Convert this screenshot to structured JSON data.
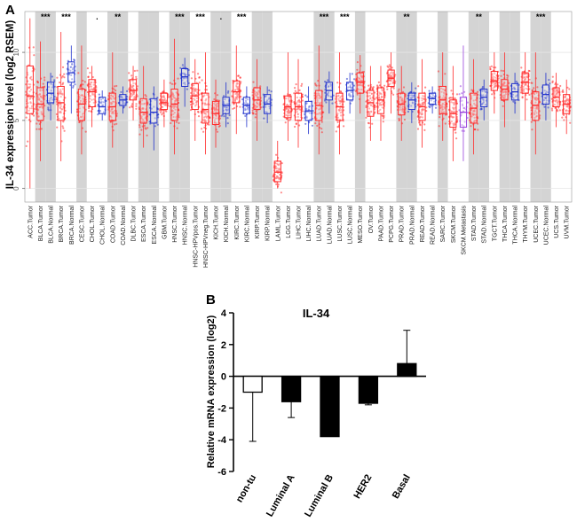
{
  "panel_a_label": "A",
  "panel_b_label": "B",
  "colors": {
    "tumor": "#ff2a2a",
    "normal": "#2233cc",
    "metastasis": "#9944dd",
    "shade": "#d4d4d4",
    "bar_black": "#000000",
    "bar_white": "#ffffff"
  },
  "chart_data": [
    {
      "type": "box",
      "title": "",
      "ylabel": "IL-34 expression level (log2 RSEM)",
      "xlabel": "",
      "ylim": [
        -1,
        13
      ],
      "yticks": [
        0,
        5,
        10
      ],
      "categories": [
        {
          "label": "ACC.Tumor",
          "group": "tumor",
          "shade": false,
          "q1": 5.5,
          "median": 6.8,
          "q3": 9.0,
          "lo": 0.0,
          "hi": 12.5,
          "sig": ""
        },
        {
          "label": "BLCA.Tumor",
          "group": "tumor",
          "shade": true,
          "q1": 5.0,
          "median": 6.2,
          "q3": 7.4,
          "lo": 2.0,
          "hi": 10.8,
          "sig": "***"
        },
        {
          "label": "BLCA.Normal",
          "group": "normal",
          "shade": true,
          "q1": 6.3,
          "median": 7.0,
          "q3": 7.8,
          "lo": 5.0,
          "hi": 8.5,
          "sig": ""
        },
        {
          "label": "BRCA.Tumor",
          "group": "tumor",
          "shade": false,
          "q1": 5.0,
          "median": 6.3,
          "q3": 7.5,
          "lo": 2.0,
          "hi": 11.5,
          "sig": "***"
        },
        {
          "label": "BRCA.Normal",
          "group": "normal",
          "shade": false,
          "q1": 7.8,
          "median": 8.5,
          "q3": 9.3,
          "lo": 5.5,
          "hi": 10.5,
          "sig": ""
        },
        {
          "label": "CESC.Tumor",
          "group": "tumor",
          "shade": true,
          "q1": 5.0,
          "median": 6.2,
          "q3": 7.3,
          "lo": 2.5,
          "hi": 10.5,
          "sig": ""
        },
        {
          "label": "CHOL.Tumor",
          "group": "tumor",
          "shade": false,
          "q1": 6.0,
          "median": 7.1,
          "q3": 8.0,
          "lo": 4.5,
          "hi": 9.0,
          "sig": "."
        },
        {
          "label": "CHOL.Normal",
          "group": "normal",
          "shade": false,
          "q1": 5.5,
          "median": 6.0,
          "q3": 6.7,
          "lo": 5.0,
          "hi": 7.2,
          "sig": ""
        },
        {
          "label": "COAD.Tumor",
          "group": "tumor",
          "shade": true,
          "q1": 5.0,
          "median": 6.0,
          "q3": 7.0,
          "lo": 3.0,
          "hi": 10.0,
          "sig": "**"
        },
        {
          "label": "COAD.Normal",
          "group": "normal",
          "shade": true,
          "q1": 6.1,
          "median": 6.5,
          "q3": 6.9,
          "lo": 5.5,
          "hi": 7.5,
          "sig": ""
        },
        {
          "label": "DLBC.Tumor",
          "group": "tumor",
          "shade": false,
          "q1": 6.5,
          "median": 7.2,
          "q3": 8.0,
          "lo": 5.0,
          "hi": 9.0,
          "sig": ""
        },
        {
          "label": "ESCA.Tumor",
          "group": "tumor",
          "shade": true,
          "q1": 4.8,
          "median": 5.6,
          "q3": 6.6,
          "lo": 3.0,
          "hi": 9.0,
          "sig": ""
        },
        {
          "label": "ESCA.Normal",
          "group": "normal",
          "shade": true,
          "q1": 4.8,
          "median": 5.6,
          "q3": 6.6,
          "lo": 2.8,
          "hi": 7.5,
          "sig": ""
        },
        {
          "label": "GBM.Tumor",
          "group": "tumor",
          "shade": false,
          "q1": 5.8,
          "median": 6.3,
          "q3": 7.0,
          "lo": 4.5,
          "hi": 8.0,
          "sig": ""
        },
        {
          "label": "HNSC.Tumor",
          "group": "tumor",
          "shade": true,
          "q1": 5.0,
          "median": 6.2,
          "q3": 7.3,
          "lo": 2.5,
          "hi": 11.0,
          "sig": "***"
        },
        {
          "label": "HNSC.Normal",
          "group": "normal",
          "shade": true,
          "q1": 7.5,
          "median": 8.2,
          "q3": 8.8,
          "lo": 6.0,
          "hi": 9.6,
          "sig": ""
        },
        {
          "label": "HNSC-HPVpos.Tumor",
          "group": "tumor",
          "shade": false,
          "q1": 5.8,
          "median": 6.8,
          "q3": 7.7,
          "lo": 3.5,
          "hi": 9.5,
          "sig": "***"
        },
        {
          "label": "HNSC-HPVneg.Tumor",
          "group": "tumor",
          "shade": false,
          "q1": 4.8,
          "median": 5.8,
          "q3": 7.0,
          "lo": 2.5,
          "hi": 10.0,
          "sig": ""
        },
        {
          "label": "KICH.Tumor",
          "group": "tumor",
          "shade": true,
          "q1": 4.7,
          "median": 5.5,
          "q3": 6.4,
          "lo": 3.0,
          "hi": 8.0,
          "sig": "."
        },
        {
          "label": "KICH.Normal",
          "group": "normal",
          "shade": true,
          "q1": 5.5,
          "median": 6.1,
          "q3": 6.7,
          "lo": 4.5,
          "hi": 7.8,
          "sig": ""
        },
        {
          "label": "KIRC.Tumor",
          "group": "tumor",
          "shade": false,
          "q1": 6.3,
          "median": 7.1,
          "q3": 7.9,
          "lo": 4.0,
          "hi": 10.5,
          "sig": "***"
        },
        {
          "label": "KIRC.Normal",
          "group": "normal",
          "shade": false,
          "q1": 5.5,
          "median": 6.1,
          "q3": 6.7,
          "lo": 4.5,
          "hi": 7.5,
          "sig": ""
        },
        {
          "label": "KIRP.Tumor",
          "group": "tumor",
          "shade": true,
          "q1": 5.8,
          "median": 6.5,
          "q3": 7.4,
          "lo": 3.5,
          "hi": 9.5,
          "sig": ""
        },
        {
          "label": "KIRP.Normal",
          "group": "normal",
          "shade": true,
          "q1": 5.5,
          "median": 6.2,
          "q3": 6.9,
          "lo": 4.8,
          "hi": 7.5,
          "sig": ""
        },
        {
          "label": "LAML.Tumor",
          "group": "tumor",
          "shade": false,
          "q1": 0.5,
          "median": 1.2,
          "q3": 2.0,
          "lo": 0.0,
          "hi": 3.5,
          "sig": ""
        },
        {
          "label": "LGG.Tumor",
          "group": "tumor",
          "shade": false,
          "q1": 5.2,
          "median": 6.0,
          "q3": 6.8,
          "lo": 3.5,
          "hi": 10.0,
          "sig": ""
        },
        {
          "label": "LIHC.Tumor",
          "group": "tumor",
          "shade": false,
          "q1": 5.0,
          "median": 6.0,
          "q3": 7.0,
          "lo": 3.0,
          "hi": 9.5,
          "sig": ""
        },
        {
          "label": "LIHC.Normal",
          "group": "normal",
          "shade": false,
          "q1": 5.0,
          "median": 5.7,
          "q3": 6.4,
          "lo": 4.0,
          "hi": 7.5,
          "sig": ""
        },
        {
          "label": "LUAD.Tumor",
          "group": "tumor",
          "shade": true,
          "q1": 5.0,
          "median": 6.1,
          "q3": 7.2,
          "lo": 2.5,
          "hi": 10.5,
          "sig": "***"
        },
        {
          "label": "LUAD.Normal",
          "group": "normal",
          "shade": true,
          "q1": 6.5,
          "median": 7.2,
          "q3": 7.8,
          "lo": 5.5,
          "hi": 8.6,
          "sig": ""
        },
        {
          "label": "LUSC.Tumor",
          "group": "tumor",
          "shade": false,
          "q1": 5.0,
          "median": 6.0,
          "q3": 7.0,
          "lo": 2.5,
          "hi": 10.0,
          "sig": "***"
        },
        {
          "label": "LUSC.Normal",
          "group": "normal",
          "shade": false,
          "q1": 6.5,
          "median": 7.2,
          "q3": 7.8,
          "lo": 5.5,
          "hi": 8.5,
          "sig": ""
        },
        {
          "label": "MESO.Tumor",
          "group": "tumor",
          "shade": true,
          "q1": 7.0,
          "median": 7.8,
          "q3": 8.5,
          "lo": 5.5,
          "hi": 9.8,
          "sig": ""
        },
        {
          "label": "OV.Tumor",
          "group": "tumor",
          "shade": false,
          "q1": 5.3,
          "median": 6.3,
          "q3": 7.2,
          "lo": 3.5,
          "hi": 9.0,
          "sig": ""
        },
        {
          "label": "PAAD.Tumor",
          "group": "tumor",
          "shade": false,
          "q1": 5.5,
          "median": 6.5,
          "q3": 7.4,
          "lo": 3.5,
          "hi": 9.0,
          "sig": ""
        },
        {
          "label": "PCPG.Tumor",
          "group": "tumor",
          "shade": false,
          "q1": 7.5,
          "median": 8.1,
          "q3": 8.7,
          "lo": 5.5,
          "hi": 10.0,
          "sig": ""
        },
        {
          "label": "PRAD.Tumor",
          "group": "tumor",
          "shade": true,
          "q1": 5.4,
          "median": 6.2,
          "q3": 7.0,
          "lo": 3.5,
          "hi": 9.0,
          "sig": "**"
        },
        {
          "label": "PRAD.Normal",
          "group": "normal",
          "shade": true,
          "q1": 5.8,
          "median": 6.5,
          "q3": 7.0,
          "lo": 4.8,
          "hi": 7.8,
          "sig": ""
        },
        {
          "label": "READ.Tumor",
          "group": "tumor",
          "shade": false,
          "q1": 5.0,
          "median": 6.0,
          "q3": 7.0,
          "lo": 3.0,
          "hi": 9.5,
          "sig": ""
        },
        {
          "label": "READ.Normal",
          "group": "normal",
          "shade": false,
          "q1": 6.2,
          "median": 6.6,
          "q3": 7.0,
          "lo": 5.5,
          "hi": 7.5,
          "sig": ""
        },
        {
          "label": "SARC.Tumor",
          "group": "tumor",
          "shade": true,
          "q1": 5.5,
          "median": 6.5,
          "q3": 7.5,
          "lo": 3.5,
          "hi": 10.0,
          "sig": ""
        },
        {
          "label": "SKCM.Tumor",
          "group": "tumor",
          "shade": false,
          "q1": 4.5,
          "median": 5.5,
          "q3": 6.5,
          "lo": 2.0,
          "hi": 9.0,
          "sig": ""
        },
        {
          "label": "SKCM.Metastasis",
          "group": "metastasis",
          "shade": false,
          "q1": 4.5,
          "median": 5.6,
          "q3": 6.7,
          "lo": 2.0,
          "hi": 10.5,
          "sig": ""
        },
        {
          "label": "STAD.Tumor",
          "group": "tumor",
          "shade": true,
          "q1": 4.8,
          "median": 5.9,
          "q3": 7.0,
          "lo": 2.5,
          "hi": 9.5,
          "sig": "**"
        },
        {
          "label": "STAD.Normal",
          "group": "normal",
          "shade": true,
          "q1": 6.0,
          "median": 6.7,
          "q3": 7.3,
          "lo": 5.0,
          "hi": 8.0,
          "sig": ""
        },
        {
          "label": "TGCT.Tumor",
          "group": "tumor",
          "shade": false,
          "q1": 7.2,
          "median": 7.9,
          "q3": 8.6,
          "lo": 5.5,
          "hi": 10.0,
          "sig": ""
        },
        {
          "label": "THCA.Tumor",
          "group": "tumor",
          "shade": true,
          "q1": 6.5,
          "median": 7.3,
          "q3": 8.0,
          "lo": 4.5,
          "hi": 10.0,
          "sig": ""
        },
        {
          "label": "THCA.Normal",
          "group": "normal",
          "shade": true,
          "q1": 6.5,
          "median": 7.1,
          "q3": 7.7,
          "lo": 5.5,
          "hi": 8.5,
          "sig": ""
        },
        {
          "label": "THYM.Tumor",
          "group": "tumor",
          "shade": false,
          "q1": 7.0,
          "median": 7.8,
          "q3": 8.5,
          "lo": 5.0,
          "hi": 10.0,
          "sig": ""
        },
        {
          "label": "UCEC.Tumor",
          "group": "tumor",
          "shade": true,
          "q1": 5.0,
          "median": 6.1,
          "q3": 7.1,
          "lo": 2.5,
          "hi": 10.0,
          "sig": "***"
        },
        {
          "label": "UCEC.Normal",
          "group": "normal",
          "shade": true,
          "q1": 6.2,
          "median": 6.9,
          "q3": 7.6,
          "lo": 5.0,
          "hi": 8.5,
          "sig": ""
        },
        {
          "label": "UCS.Tumor",
          "group": "tumor",
          "shade": false,
          "q1": 6.0,
          "median": 6.7,
          "q3": 7.4,
          "lo": 4.5,
          "hi": 8.5,
          "sig": ""
        },
        {
          "label": "UVM.Tumor",
          "group": "tumor",
          "shade": false,
          "q1": 5.5,
          "median": 6.2,
          "q3": 6.9,
          "lo": 4.0,
          "hi": 8.0,
          "sig": ""
        }
      ]
    },
    {
      "type": "bar",
      "title": "IL-34",
      "xlabel": "",
      "ylabel": "Relative mRNA expression (log2)",
      "ylim": [
        -6,
        4
      ],
      "yticks": [
        -6,
        -4,
        -2,
        0,
        2,
        4
      ],
      "categories": [
        "non-tu",
        "Luminal A",
        "Luminal B",
        "HER2",
        "Basal"
      ],
      "values": [
        -1.0,
        -1.6,
        -3.8,
        -1.7,
        0.8
      ],
      "errors": [
        3.1,
        1.0,
        0.0,
        0.1,
        2.1
      ],
      "fills": [
        "white",
        "black",
        "black",
        "black",
        "black"
      ]
    }
  ]
}
